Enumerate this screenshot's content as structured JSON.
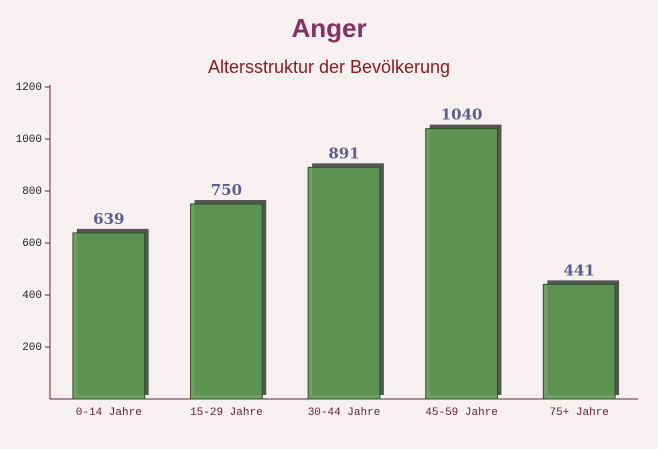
{
  "chart_data": {
    "type": "bar",
    "title": "Anger",
    "subtitle": "Altersstruktur der Bevölkerung",
    "categories": [
      "0-14 Jahre",
      "15-29 Jahre",
      "30-44 Jahre",
      "45-59 Jahre",
      "75+ Jahre"
    ],
    "values": [
      639,
      750,
      891,
      1040,
      441
    ],
    "color": "#5e9a52",
    "ylim": [
      0,
      1200
    ],
    "yticks": [
      200,
      400,
      600,
      800,
      1000,
      1200
    ],
    "grid": false
  }
}
